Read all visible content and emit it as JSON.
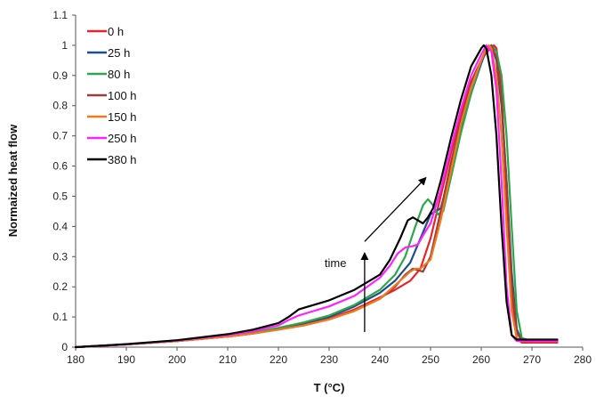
{
  "chart_data": {
    "type": "line",
    "title": "",
    "xlabel": "T (°C)",
    "ylabel": "Normaized heat flow",
    "xlim": [
      180,
      280
    ],
    "ylim": [
      0,
      1.1
    ],
    "xticks": [
      "180",
      "190",
      "200",
      "210",
      "220",
      "230",
      "240",
      "250",
      "260",
      "270",
      "280"
    ],
    "yticks": [
      "0",
      "0.1",
      "0.2",
      "0.3",
      "0.4",
      "0.5",
      "0.6",
      "0.7",
      "0.8",
      "0.9",
      "1",
      "1.1"
    ],
    "grid": false,
    "legend_position": "top-left",
    "annotations": [
      {
        "text": "time",
        "arrow_from": [
          237,
          0.05
        ],
        "arrow_to": [
          237,
          0.31
        ]
      },
      {
        "text": "",
        "arrow_from": [
          237,
          0.35
        ],
        "arrow_to": [
          249,
          0.56
        ]
      }
    ],
    "series": [
      {
        "name": "0 h",
        "color": "#e8232a",
        "x": [
          180,
          190,
          200,
          210,
          215,
          220,
          225,
          230,
          235,
          240,
          243,
          246,
          248,
          250,
          252,
          254,
          256,
          258,
          260,
          261,
          262,
          262.5,
          263,
          264,
          265,
          266,
          267,
          268,
          270,
          275
        ],
        "y": [
          0,
          0.009,
          0.02,
          0.035,
          0.045,
          0.06,
          0.075,
          0.095,
          0.125,
          0.165,
          0.19,
          0.22,
          0.26,
          0.36,
          0.5,
          0.64,
          0.77,
          0.88,
          0.95,
          0.975,
          0.995,
          1.0,
          0.99,
          0.85,
          0.5,
          0.18,
          0.03,
          0.015,
          0.015,
          0.015
        ]
      },
      {
        "name": "25 h",
        "color": "#1f4e8c",
        "x": [
          180,
          190,
          200,
          210,
          215,
          220,
          225,
          230,
          235,
          240,
          243,
          246,
          248,
          249,
          250,
          251,
          252,
          254,
          256,
          258,
          260,
          261,
          262,
          263,
          264,
          265,
          266,
          267,
          268,
          270,
          275
        ],
        "y": [
          0,
          0.009,
          0.02,
          0.036,
          0.047,
          0.062,
          0.08,
          0.1,
          0.135,
          0.18,
          0.22,
          0.28,
          0.36,
          0.4,
          0.44,
          0.45,
          0.46,
          0.58,
          0.72,
          0.84,
          0.94,
          0.985,
          1.0,
          0.95,
          0.8,
          0.55,
          0.25,
          0.06,
          0.02,
          0.02,
          0.02
        ]
      },
      {
        "name": "80 h",
        "color": "#2ca84a",
        "x": [
          180,
          190,
          200,
          210,
          215,
          220,
          225,
          230,
          235,
          240,
          243,
          245,
          247,
          248.5,
          249.5,
          250.5,
          251.5,
          252.5,
          254,
          256,
          258,
          260,
          261,
          262,
          263,
          264,
          265,
          266,
          267,
          268,
          270,
          275
        ],
        "y": [
          0,
          0.009,
          0.02,
          0.037,
          0.048,
          0.064,
          0.082,
          0.105,
          0.14,
          0.19,
          0.24,
          0.3,
          0.4,
          0.47,
          0.49,
          0.47,
          0.44,
          0.45,
          0.56,
          0.71,
          0.84,
          0.95,
          0.99,
          1.0,
          0.98,
          0.9,
          0.7,
          0.4,
          0.12,
          0.03,
          0.02,
          0.02
        ]
      },
      {
        "name": "100 h",
        "color": "#9e3d3a",
        "x": [
          180,
          190,
          200,
          210,
          215,
          220,
          225,
          230,
          235,
          240,
          243,
          245,
          246.5,
          247.5,
          248.5,
          250,
          252,
          254,
          256,
          258,
          260,
          261,
          262,
          263,
          264,
          265,
          266,
          267,
          268,
          270,
          275
        ],
        "y": [
          0,
          0.009,
          0.02,
          0.035,
          0.045,
          0.058,
          0.072,
          0.092,
          0.12,
          0.16,
          0.2,
          0.24,
          0.26,
          0.255,
          0.25,
          0.3,
          0.45,
          0.61,
          0.75,
          0.87,
          0.95,
          0.985,
          1.0,
          0.96,
          0.82,
          0.55,
          0.22,
          0.05,
          0.02,
          0.02,
          0.02
        ]
      },
      {
        "name": "150 h",
        "color": "#f07a1e",
        "x": [
          180,
          190,
          200,
          210,
          215,
          220,
          225,
          230,
          235,
          240,
          242,
          244,
          246,
          247,
          248,
          250,
          252,
          254,
          256,
          258,
          260,
          261,
          261.5,
          262,
          263,
          264,
          265,
          266,
          267,
          268,
          270,
          275
        ],
        "y": [
          0,
          0.009,
          0.02,
          0.035,
          0.045,
          0.058,
          0.072,
          0.092,
          0.12,
          0.16,
          0.19,
          0.22,
          0.25,
          0.26,
          0.26,
          0.29,
          0.42,
          0.58,
          0.74,
          0.86,
          0.95,
          0.99,
          1.0,
          0.99,
          0.9,
          0.7,
          0.4,
          0.12,
          0.03,
          0.02,
          0.02,
          0.02
        ]
      },
      {
        "name": "250 h",
        "color": "#ff22ff",
        "x": [
          180,
          190,
          200,
          210,
          215,
          220,
          222,
          224,
          226,
          230,
          235,
          240,
          242,
          243.5,
          245,
          246.5,
          247.5,
          248.5,
          250,
          252,
          254,
          256,
          258,
          260,
          261,
          262,
          263,
          264,
          265,
          266,
          267,
          268,
          270,
          275
        ],
        "y": [
          0,
          0.009,
          0.022,
          0.04,
          0.053,
          0.072,
          0.09,
          0.105,
          0.115,
          0.135,
          0.17,
          0.23,
          0.27,
          0.31,
          0.33,
          0.335,
          0.34,
          0.37,
          0.41,
          0.52,
          0.66,
          0.79,
          0.9,
          0.97,
          1.0,
          0.98,
          0.85,
          0.55,
          0.2,
          0.04,
          0.02,
          0.02,
          0.02,
          0.02
        ]
      },
      {
        "name": "380 h",
        "color": "#000000",
        "x": [
          180,
          190,
          200,
          210,
          215,
          220,
          222,
          224,
          226,
          230,
          235,
          240,
          242,
          244,
          245.5,
          246.5,
          247.5,
          248.5,
          249.5,
          250.5,
          252,
          254,
          256,
          258,
          260,
          260.5,
          261,
          262,
          263,
          264,
          265,
          266,
          267,
          268,
          270,
          275
        ],
        "y": [
          0,
          0.01,
          0.023,
          0.043,
          0.058,
          0.08,
          0.1,
          0.125,
          0.135,
          0.155,
          0.19,
          0.24,
          0.29,
          0.36,
          0.42,
          0.43,
          0.42,
          0.41,
          0.43,
          0.46,
          0.55,
          0.69,
          0.82,
          0.93,
          0.99,
          1.0,
          0.99,
          0.9,
          0.7,
          0.4,
          0.15,
          0.04,
          0.025,
          0.025,
          0.025,
          0.025
        ]
      }
    ]
  }
}
